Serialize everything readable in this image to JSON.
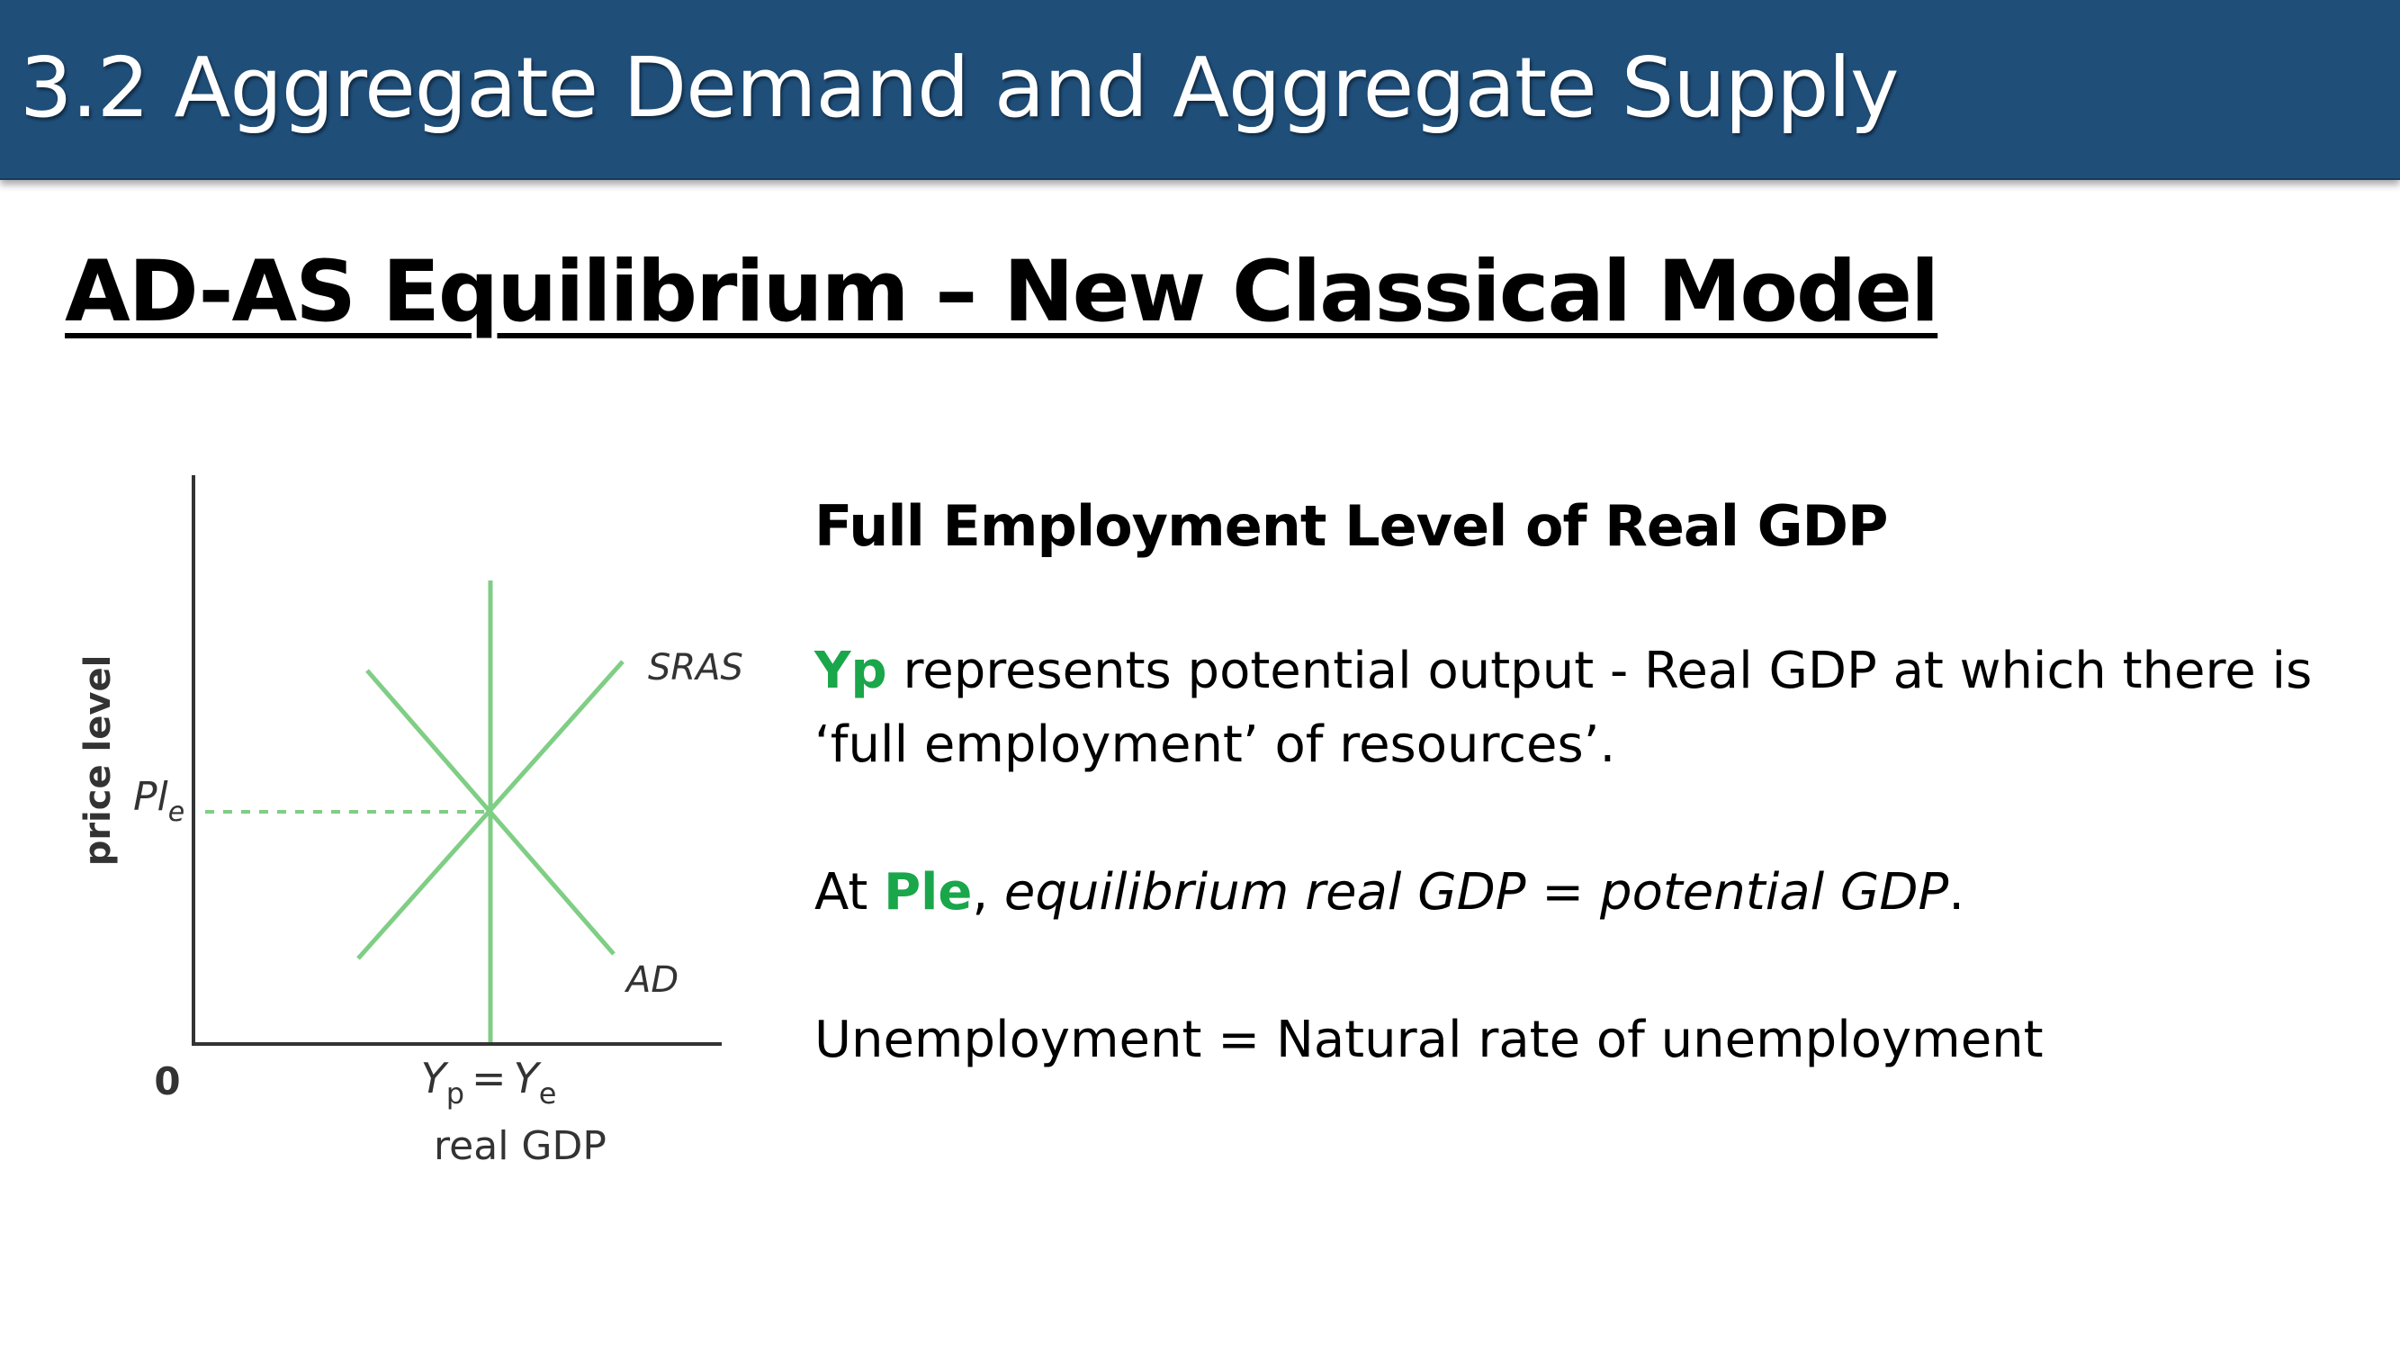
{
  "header": {
    "title": "3.2 Aggregate Demand and Aggregate Supply"
  },
  "slide": {
    "title": "AD-AS Equilibrium – New Classical Model"
  },
  "diagram": {
    "y_axis_label": "price level",
    "x_axis_label": "real GDP",
    "origin_label": "0",
    "price_label_main": "Pl",
    "price_label_sub": "e",
    "yp_main": "Y",
    "yp_sub": "p",
    "equals": "=",
    "ye_main": "Y",
    "ye_sub": "e",
    "sras_label": "SRAS",
    "ad_label": "AD",
    "curve_color": "#7fce85"
  },
  "content": {
    "heading": "Full Employment Level of Real GDP",
    "p1": {
      "highlight": "Yp",
      "rest": " represents potential output - Real GDP at which there is",
      "line2": "‘full employment’ of resources’."
    },
    "p2": {
      "prefix": "At ",
      "highlight": "Ple",
      "comma": ", ",
      "italic": "equilibrium real GDP = potential GDP",
      "suffix": "."
    },
    "p3": {
      "text": "Unemployment = Natural rate of unemployment"
    },
    "highlight_color": "#1aa64a"
  }
}
